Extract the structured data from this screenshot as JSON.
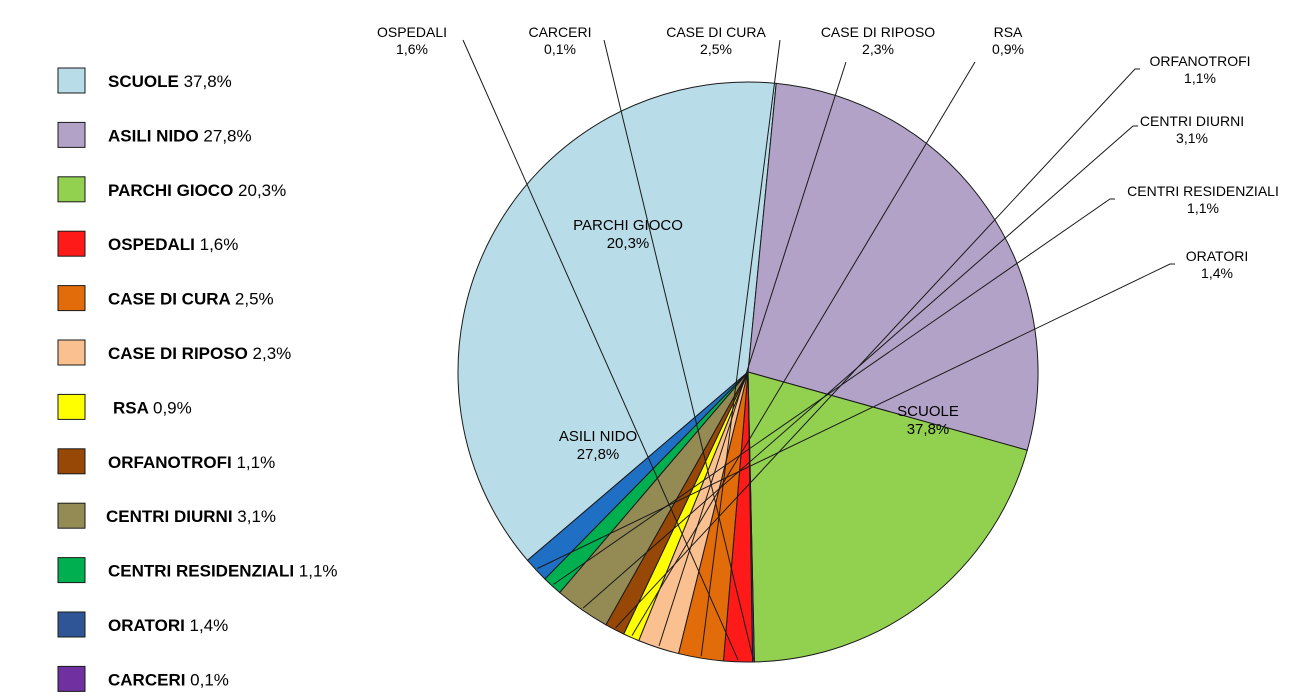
{
  "chart_data": {
    "type": "pie",
    "title": "",
    "slices": [
      {
        "name": "SCUOLE",
        "value": 37.8,
        "label": "37,8%",
        "color": "#b8dde8"
      },
      {
        "name": "ASILI NIDO",
        "value": 27.8,
        "label": "27,8%",
        "color": "#b3a2c7"
      },
      {
        "name": "PARCHI GIOCO",
        "value": 20.3,
        "label": "20,3%",
        "color": "#92d050"
      },
      {
        "name": "OSPEDALI",
        "value": 1.6,
        "label": "1,6%",
        "color": "#ff1a1a"
      },
      {
        "name": "CASE DI CURA",
        "value": 2.5,
        "label": "2,5%",
        "color": "#e26b0a"
      },
      {
        "name": "CASE DI RIPOSO",
        "value": 2.3,
        "label": "2,3%",
        "color": "#fac090"
      },
      {
        "name": "RSA",
        "value": 0.9,
        "label": "0,9%",
        "color": "#ffff00"
      },
      {
        "name": "ORFANOTROFI",
        "value": 1.1,
        "label": "1,1%",
        "color": "#974706"
      },
      {
        "name": "CENTRI DIURNI",
        "value": 3.1,
        "label": "3,1%",
        "color": "#948a54"
      },
      {
        "name": "CENTRI RESIDENZIALI",
        "value": 1.1,
        "label": "1,1%",
        "color": "#00b050"
      },
      {
        "name": "ORATORI",
        "value": 1.4,
        "label": "1,4%",
        "color": "#1f6fc5"
      },
      {
        "name": "CARCERI",
        "value": 0.1,
        "label": "0,1%",
        "color": "#7030a0"
      }
    ],
    "legend_placement": "left",
    "legend_order": [
      "SCUOLE",
      "ASILI NIDO",
      "PARCHI GIOCO",
      "OSPEDALI",
      "CASE DI CURA",
      "CASE DI RIPOSO",
      "RSA",
      "ORFANOTROFI",
      "CENTRI DIURNI",
      "CENTRI RESIDENZIALI",
      "ORATORI",
      "CARCERI"
    ],
    "legend_swatch_colors": {
      "ORATORI": "#2f5597"
    }
  }
}
